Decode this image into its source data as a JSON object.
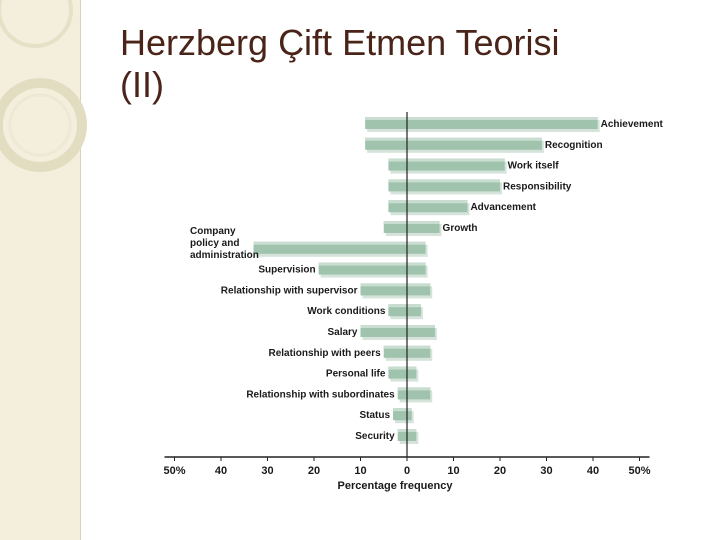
{
  "slide": {
    "title_line1": "Herzberg Çift Etmen Teorisi",
    "title_line2": "(II)"
  },
  "chart_data": {
    "type": "bar",
    "orientation": "diverging-horizontal",
    "xlabel": "Percentage frequency",
    "xlim": [
      -50,
      50
    ],
    "xticks": [
      "50%",
      "40",
      "30",
      "20",
      "10",
      "0",
      "10",
      "20",
      "30",
      "40",
      "50%"
    ],
    "categories": [
      "Achievement",
      "Recognition",
      "Work itself",
      "Responsibility",
      "Advancement",
      "Growth",
      "Company policy and administration",
      "Supervision",
      "Relationship with supervisor",
      "Work conditions",
      "Salary",
      "Relationship with peers",
      "Personal life",
      "Relationship with subordinates",
      "Status",
      "Security"
    ],
    "category_lines": [
      [
        "Achievement"
      ],
      [
        "Recognition"
      ],
      [
        "Work itself"
      ],
      [
        "Responsibility"
      ],
      [
        "Advancement"
      ],
      [
        "Growth"
      ],
      [
        "Company",
        "policy and",
        "administration"
      ],
      [
        "Supervision"
      ],
      [
        "Relationship with supervisor"
      ],
      [
        "Work conditions"
      ],
      [
        "Salary"
      ],
      [
        "Relationship with peers"
      ],
      [
        "Personal life"
      ],
      [
        "Relationship with subordinates"
      ],
      [
        "Status"
      ],
      [
        "Security"
      ]
    ],
    "label_side": [
      "right",
      "right",
      "right",
      "right",
      "right",
      "right",
      "left",
      "left",
      "left",
      "left",
      "left",
      "left",
      "left",
      "left",
      "left",
      "left"
    ],
    "left_values": [
      9,
      9,
      4,
      4,
      4,
      5,
      33,
      19,
      10,
      4,
      10,
      5,
      4,
      2,
      3,
      2
    ],
    "right_values": [
      41,
      29,
      21,
      20,
      13,
      7,
      4,
      4,
      5,
      3,
      6,
      5,
      2,
      5,
      1,
      2
    ],
    "bar_color": "#9fc3ad",
    "bar_highlight": "#c9ddd0",
    "shadow_color": "#d5e3da"
  },
  "colors": {
    "title": "#4a2418",
    "sidebar": "#f3efdc"
  }
}
